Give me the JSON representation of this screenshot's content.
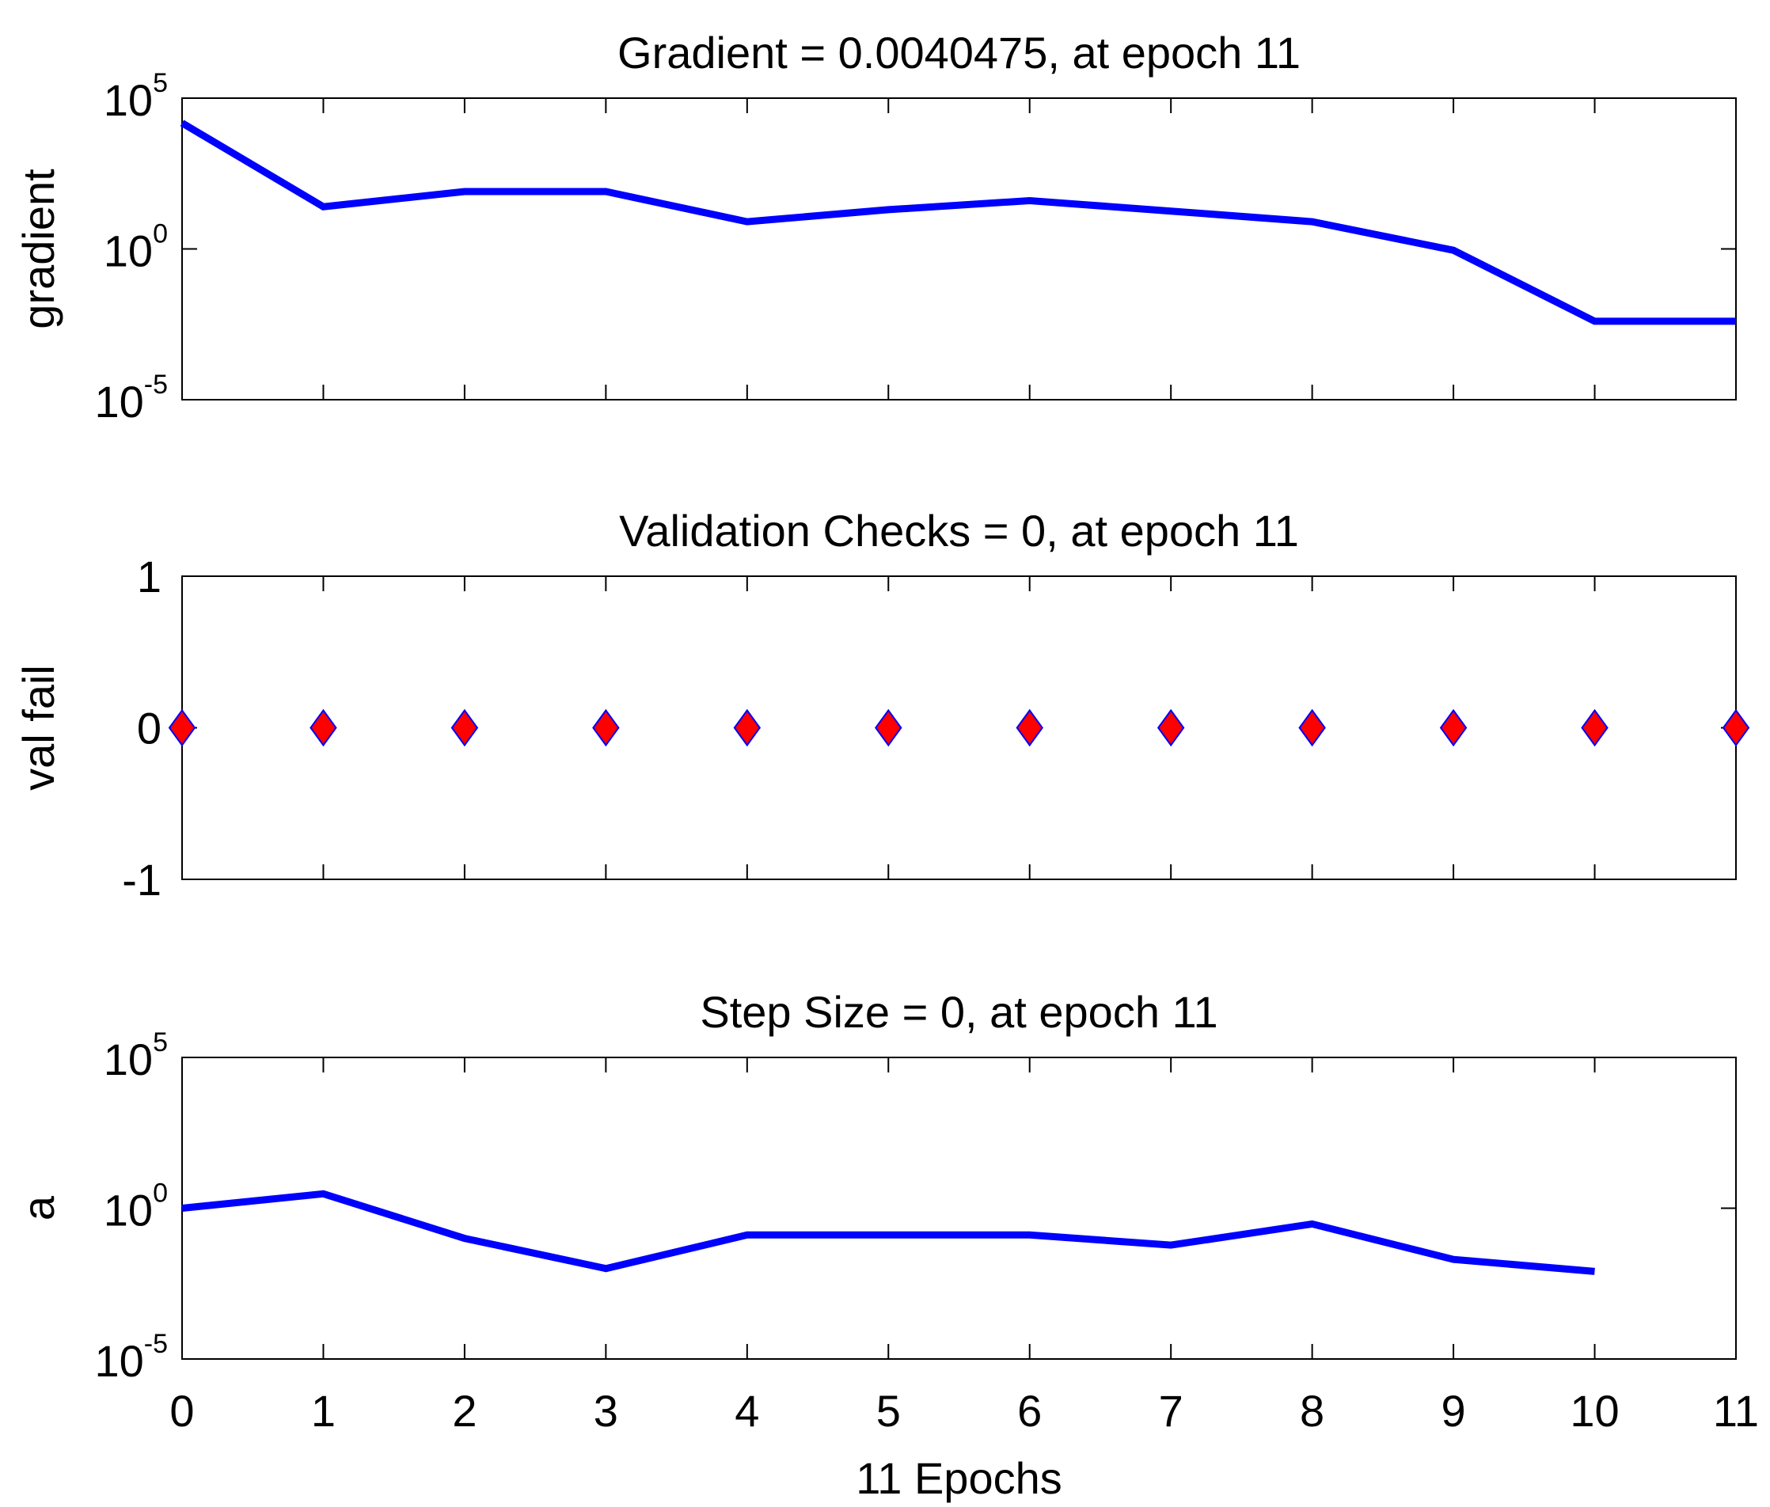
{
  "chart_data": [
    {
      "type": "line",
      "title": "Gradient = 0.0040475, at epoch 11",
      "xlabel": "",
      "ylabel": "gradient",
      "yscale": "log",
      "x": [
        0,
        1,
        2,
        3,
        4,
        5,
        6,
        7,
        8,
        9,
        10,
        11
      ],
      "values": [
        15000,
        25,
        80,
        80,
        8,
        20,
        40,
        18,
        8,
        0.9,
        0.004,
        0.004
      ],
      "xlim": [
        0,
        11
      ],
      "ylim_exp": [
        -5,
        5
      ],
      "yticks": [
        {
          "base": "10",
          "exp": "-5"
        },
        {
          "base": "10",
          "exp": "0"
        },
        {
          "base": "10",
          "exp": "5"
        }
      ],
      "color": "#0000ff"
    },
    {
      "type": "scatter",
      "title": "Validation Checks = 0, at epoch 11",
      "xlabel": "",
      "ylabel": "val fail",
      "x": [
        0,
        1,
        2,
        3,
        4,
        5,
        6,
        7,
        8,
        9,
        10,
        11
      ],
      "values": [
        0,
        0,
        0,
        0,
        0,
        0,
        0,
        0,
        0,
        0,
        0,
        0
      ],
      "xlim": [
        0,
        11
      ],
      "ylim": [
        -1,
        1
      ],
      "yticks": [
        "-1",
        "0",
        "1"
      ],
      "marker": "diamond",
      "color": "#ff0000",
      "edge_color": "#0000ff"
    },
    {
      "type": "line",
      "title": "Step Size = 0, at epoch 11",
      "xlabel": "11 Epochs",
      "ylabel": "a",
      "yscale": "log",
      "x": [
        0,
        1,
        2,
        3,
        4,
        5,
        6,
        7,
        8,
        9,
        10
      ],
      "values": [
        1,
        3,
        0.1,
        0.01,
        0.13,
        0.13,
        0.13,
        0.06,
        0.3,
        0.02,
        0.008
      ],
      "xlim": [
        0,
        11
      ],
      "ylim_exp": [
        -5,
        5
      ],
      "yticks": [
        {
          "base": "10",
          "exp": "-5"
        },
        {
          "base": "10",
          "exp": "0"
        },
        {
          "base": "10",
          "exp": "5"
        }
      ],
      "xticks": [
        "0",
        "1",
        "2",
        "3",
        "4",
        "5",
        "6",
        "7",
        "8",
        "9",
        "10",
        "11"
      ],
      "color": "#0000ff"
    }
  ]
}
